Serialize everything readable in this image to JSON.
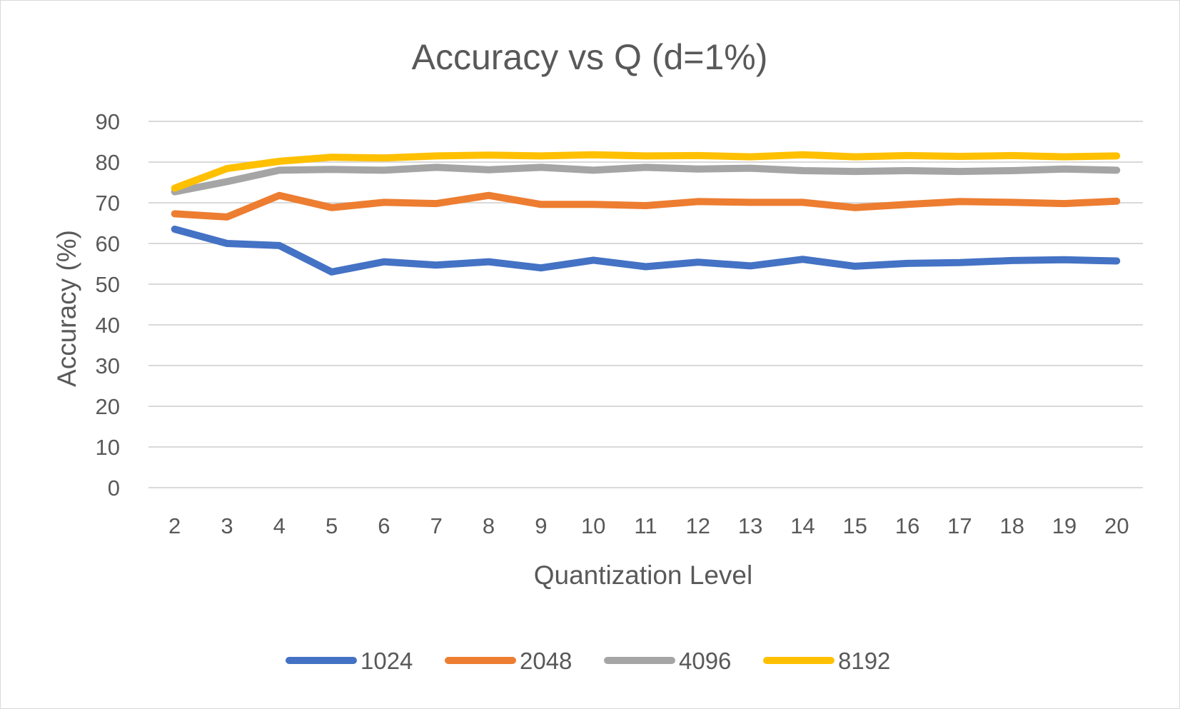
{
  "chart_data": {
    "type": "line",
    "title": "Accuracy vs Q (d=1%)",
    "xlabel": "Quantization Level",
    "ylabel": "Accuracy (%)",
    "categories": [
      "2",
      "3",
      "4",
      "5",
      "6",
      "7",
      "8",
      "9",
      "10",
      "11",
      "12",
      "13",
      "14",
      "15",
      "16",
      "17",
      "18",
      "19",
      "20"
    ],
    "ylim": [
      0,
      90
    ],
    "yticks": [
      "0",
      "10",
      "20",
      "30",
      "40",
      "50",
      "60",
      "70",
      "80",
      "90"
    ],
    "grid": true,
    "legend_position": "bottom",
    "series": [
      {
        "name": "1024",
        "color": "#4472C4",
        "values": [
          63.5,
          60.0,
          59.5,
          53.0,
          55.5,
          54.7,
          55.5,
          54.0,
          55.9,
          54.3,
          55.4,
          54.5,
          56.1,
          54.4,
          55.1,
          55.3,
          55.8,
          56.0,
          55.7
        ]
      },
      {
        "name": "2048",
        "color": "#ED7D31",
        "values": [
          67.3,
          66.5,
          71.8,
          68.8,
          70.1,
          69.8,
          71.8,
          69.6,
          69.6,
          69.3,
          70.3,
          70.1,
          70.1,
          68.8,
          69.6,
          70.3,
          70.1,
          69.8,
          70.4
        ]
      },
      {
        "name": "4096",
        "color": "#A5A5A5",
        "values": [
          72.7,
          75.2,
          78.0,
          78.2,
          78.0,
          78.7,
          78.1,
          78.7,
          78.0,
          78.7,
          78.3,
          78.5,
          77.9,
          77.7,
          77.9,
          77.7,
          77.9,
          78.3,
          78.0
        ]
      },
      {
        "name": "8192",
        "color": "#FFC000",
        "values": [
          73.6,
          78.4,
          80.2,
          81.2,
          81.0,
          81.5,
          81.7,
          81.5,
          81.8,
          81.5,
          81.6,
          81.3,
          81.8,
          81.3,
          81.6,
          81.4,
          81.6,
          81.3,
          81.5
        ]
      }
    ]
  }
}
